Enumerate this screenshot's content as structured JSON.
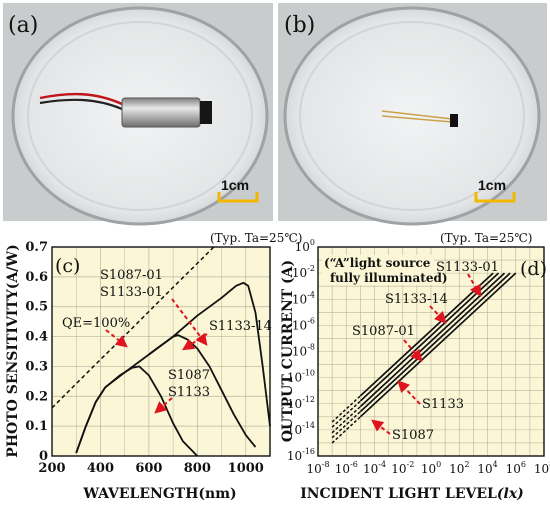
{
  "photos": {
    "a": {
      "panel_label": "(a)",
      "scale_label": "1cm"
    },
    "b": {
      "panel_label": "(b)",
      "scale_label": "1cm"
    }
  },
  "colors": {
    "chart_bg": "#fbf6d6",
    "grid": "#b9b4a0",
    "curve": "#111111",
    "annotation_arrow": "#e0141e",
    "scale_bar": "#f2b800"
  },
  "chart_data": [
    {
      "type": "line",
      "panel_label": "(c)",
      "note": "(Typ. Ta=25℃)",
      "xlabel": "WAVELENGTH(nm)",
      "ylabel": "PHOTO SENSITIVITY(A/W)",
      "xlim": [
        200,
        1100
      ],
      "ylim": [
        0,
        0.7
      ],
      "x_ticks": [
        "200",
        "400",
        "600",
        "800",
        "1000"
      ],
      "y_ticks": [
        "0",
        "0.1",
        "0.2",
        "0.3",
        "0.4",
        "0.5",
        "0.6",
        "0.7"
      ],
      "grid": true,
      "series": [
        {
          "name": "QE=100%",
          "style": "dashed",
          "points": [
            [
              200,
              0.161
            ],
            [
              300,
              0.242
            ],
            [
              400,
              0.323
            ],
            [
              500,
              0.403
            ],
            [
              600,
              0.484
            ],
            [
              700,
              0.565
            ],
            [
              800,
              0.645
            ],
            [
              868,
              0.7
            ]
          ]
        },
        {
          "name": "S1087-01 S1133-01",
          "points": [
            [
              300,
              0.01
            ],
            [
              340,
              0.1
            ],
            [
              380,
              0.18
            ],
            [
              420,
              0.23
            ],
            [
              500,
              0.28
            ],
            [
              600,
              0.34
            ],
            [
              700,
              0.4
            ],
            [
              800,
              0.47
            ],
            [
              900,
              0.53
            ],
            [
              960,
              0.57
            ],
            [
              990,
              0.58
            ],
            [
              1010,
              0.57
            ],
            [
              1040,
              0.48
            ],
            [
              1070,
              0.3
            ],
            [
              1100,
              0.1
            ]
          ]
        },
        {
          "name": "S1133-14",
          "points": [
            [
              600,
              0.34
            ],
            [
              650,
              0.37
            ],
            [
              700,
              0.4
            ],
            [
              720,
              0.405
            ],
            [
              760,
              0.39
            ],
            [
              800,
              0.36
            ],
            [
              850,
              0.3
            ],
            [
              900,
              0.22
            ],
            [
              950,
              0.14
            ],
            [
              1000,
              0.07
            ],
            [
              1040,
              0.03
            ]
          ]
        },
        {
          "name": "S1087 S1133",
          "points": [
            [
              300,
              0.01
            ],
            [
              340,
              0.1
            ],
            [
              380,
              0.18
            ],
            [
              420,
              0.23
            ],
            [
              480,
              0.27
            ],
            [
              530,
              0.295
            ],
            [
              560,
              0.3
            ],
            [
              600,
              0.27
            ],
            [
              650,
              0.2
            ],
            [
              700,
              0.11
            ],
            [
              740,
              0.05
            ],
            [
              800,
              0.0
            ]
          ]
        }
      ],
      "annotations": [
        "S1087-01",
        "S1133-01",
        "QE=100%",
        "S1133-14",
        "S1087",
        "S1133"
      ]
    },
    {
      "type": "line",
      "panel_label": "(d)",
      "note": "(Typ. Ta=25℃)",
      "xlabel": "INCIDENT LIGHT LEVEL",
      "xlabel_unit": "(lx)",
      "ylabel": "OUTPUT CURRENT (A)",
      "x_scale": "log",
      "y_scale": "log",
      "xlim": [
        1e-08,
        100000000.0
      ],
      "ylim": [
        1e-16,
        1
      ],
      "x_ticks": [
        -8,
        -6,
        -4,
        -2,
        0,
        2,
        4,
        6,
        8
      ],
      "y_ticks": [
        -16,
        -14,
        -12,
        -10,
        -8,
        -6,
        -4,
        -2,
        0
      ],
      "grid": true,
      "series": [
        {
          "name": "S1133-01",
          "points": [
            [
              1e-07,
              1e-15
            ],
            [
              1000000.0,
              0.01
            ]
          ]
        },
        {
          "name": "S1133-14",
          "points": [
            [
              1e-07,
              2.5e-15
            ],
            [
              400000.0,
              0.01
            ]
          ]
        },
        {
          "name": "S1087-01",
          "points": [
            [
              1e-07,
              6e-15
            ],
            [
              160000.0,
              0.01
            ]
          ]
        },
        {
          "name": "S1133",
          "points": [
            [
              1e-07,
              1.6e-14
            ],
            [
              60000.0,
              0.01
            ]
          ]
        },
        {
          "name": "S1087",
          "points": [
            [
              1e-07,
              4e-14
            ],
            [
              25000.0,
              0.01
            ]
          ]
        }
      ],
      "legend_note": "(“A”light source fully illuminated)",
      "annotations": [
        "S1133-01",
        "S1133-14",
        "S1087-01",
        "S1133",
        "S1087"
      ]
    }
  ]
}
